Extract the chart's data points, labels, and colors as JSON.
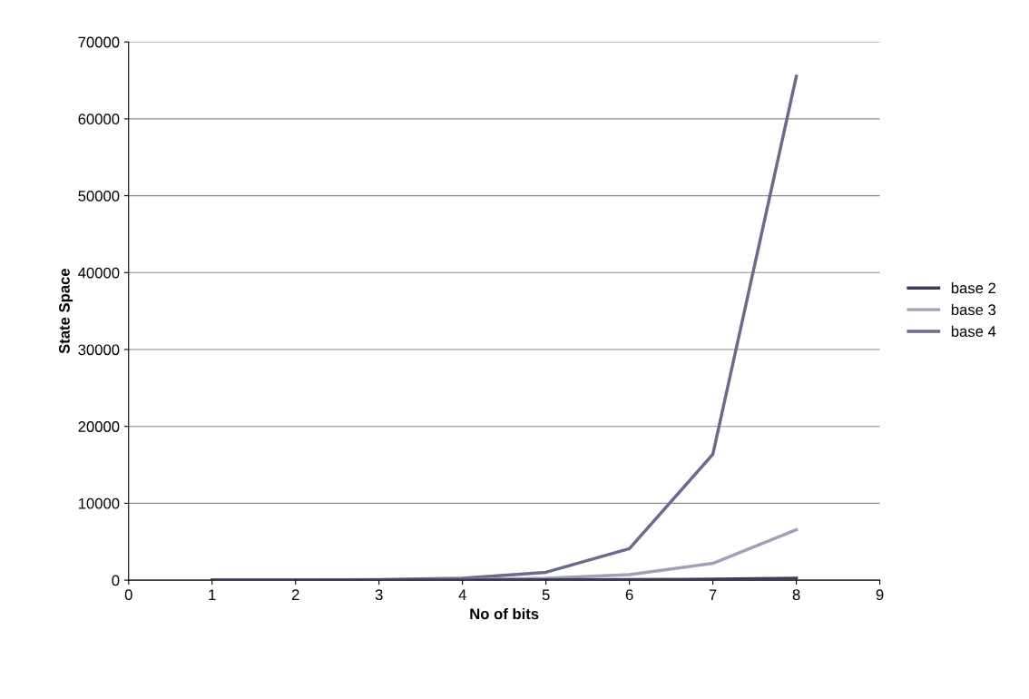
{
  "chart_data": {
    "type": "line",
    "xlabel": "No of bits",
    "ylabel": "State Space",
    "x": [
      1,
      2,
      3,
      4,
      5,
      6,
      7,
      8
    ],
    "series": [
      {
        "name": "base 2",
        "color": "#3c3c5c",
        "values": [
          2,
          4,
          8,
          16,
          32,
          64,
          128,
          256
        ]
      },
      {
        "name": "base 3",
        "color": "#a0a0b8",
        "values": [
          3,
          9,
          27,
          81,
          243,
          729,
          2187,
          6561
        ]
      },
      {
        "name": "base 4",
        "color": "#6a6a8c",
        "values": [
          4,
          16,
          64,
          256,
          1024,
          4096,
          16384,
          65536
        ]
      }
    ],
    "xlim": [
      0,
      9
    ],
    "xticks": [
      0,
      1,
      2,
      3,
      4,
      5,
      6,
      7,
      8,
      9
    ],
    "ylim": [
      0,
      70000
    ],
    "yticks": [
      0,
      10000,
      20000,
      30000,
      40000,
      50000,
      60000,
      70000
    ],
    "grid": "y",
    "legend": "right",
    "marker": "none",
    "line_style": "solid"
  }
}
